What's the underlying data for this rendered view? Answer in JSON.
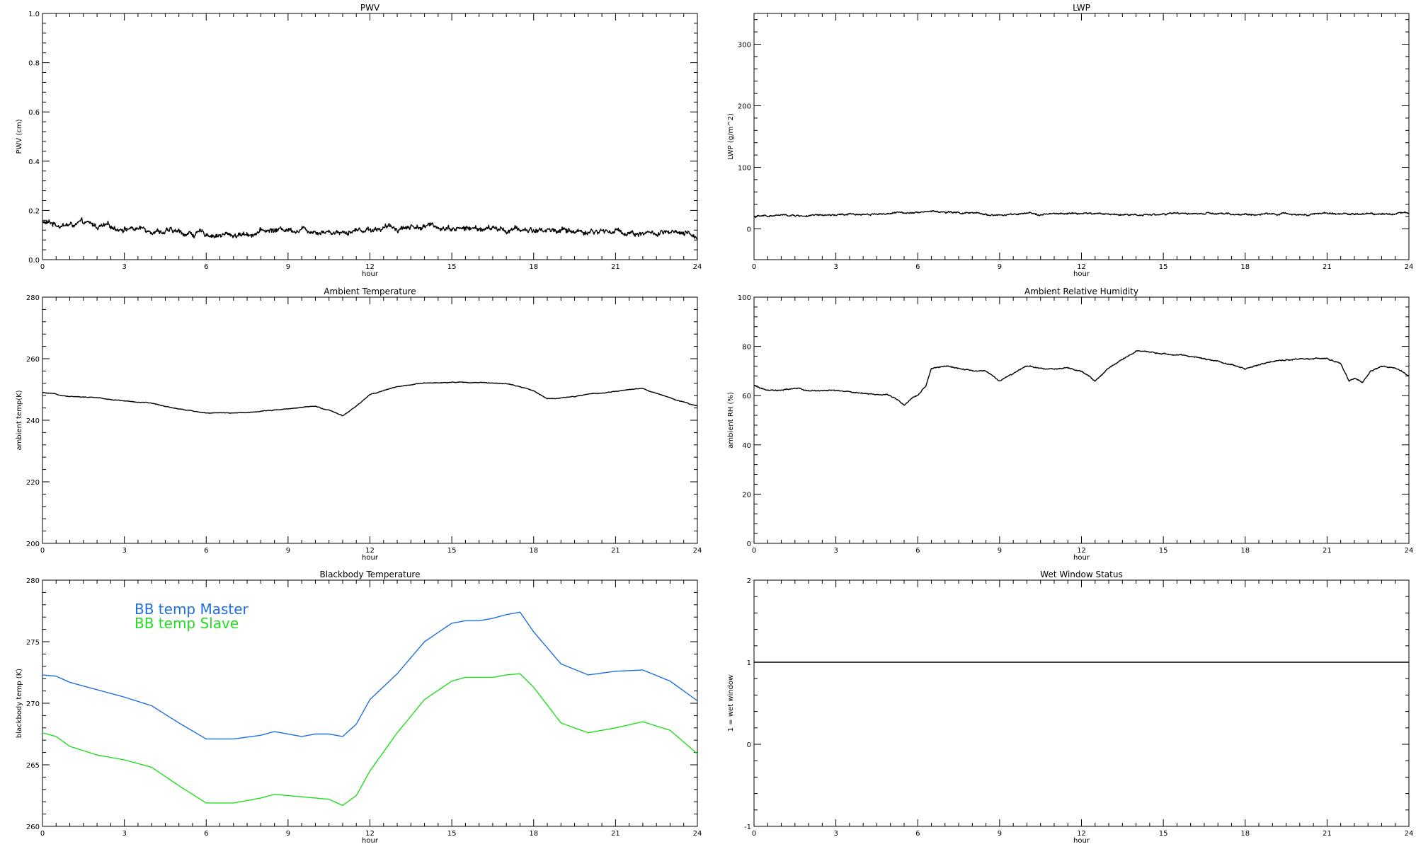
{
  "chart_data": [
    {
      "id": "pwv",
      "type": "line",
      "title": "PWV",
      "xlabel": "hour",
      "ylabel": "PWV (cm)",
      "xlim": [
        0,
        24
      ],
      "ylim": [
        0.0,
        1.0
      ],
      "xticks": [
        0,
        3,
        6,
        9,
        12,
        15,
        18,
        21,
        24
      ],
      "yticks": [
        0.0,
        0.2,
        0.4,
        0.6,
        0.8,
        1.0
      ],
      "ytick_labels": [
        "0.0",
        "0.2",
        "0.4",
        "0.6",
        "0.8",
        "1.0"
      ],
      "grid": false,
      "noise": 0.012,
      "series": [
        {
          "color": "#000000",
          "x": [
            0,
            0.5,
            1,
            1.5,
            2,
            2.5,
            3,
            3.5,
            4,
            4.5,
            5,
            5.5,
            6,
            6.5,
            7,
            7.5,
            8,
            8.5,
            9,
            9.5,
            10,
            10.5,
            11,
            11.5,
            12,
            12.5,
            13,
            13.5,
            14,
            14.5,
            15,
            15.5,
            16,
            16.5,
            17,
            17.5,
            18,
            18.5,
            19,
            19.5,
            20,
            20.5,
            21,
            21.5,
            22,
            22.5,
            23,
            23.5,
            24
          ],
          "y": [
            0.15,
            0.145,
            0.14,
            0.145,
            0.135,
            0.13,
            0.13,
            0.125,
            0.125,
            0.115,
            0.11,
            0.105,
            0.105,
            0.1,
            0.1,
            0.105,
            0.115,
            0.12,
            0.125,
            0.125,
            0.12,
            0.115,
            0.115,
            0.12,
            0.125,
            0.13,
            0.13,
            0.135,
            0.135,
            0.135,
            0.13,
            0.125,
            0.125,
            0.125,
            0.12,
            0.12,
            0.12,
            0.12,
            0.12,
            0.115,
            0.115,
            0.115,
            0.115,
            0.11,
            0.11,
            0.105,
            0.105,
            0.1,
            0.095
          ]
        }
      ]
    },
    {
      "id": "lwp",
      "type": "line",
      "title": "LWP",
      "xlabel": "hour",
      "ylabel": "LWP (g/m^2)",
      "xlim": [
        0,
        24
      ],
      "ylim": [
        -50,
        350
      ],
      "xticks": [
        0,
        3,
        6,
        9,
        12,
        15,
        18,
        21,
        24
      ],
      "yticks": [
        0,
        100,
        200,
        300
      ],
      "ytick_labels": [
        "0",
        "100",
        "200",
        "300"
      ],
      "grid": false,
      "noise": 1.5,
      "series": [
        {
          "color": "#000000",
          "x": [
            0,
            1,
            2,
            3,
            4,
            5,
            6,
            6.5,
            7,
            8,
            9,
            10,
            11,
            12,
            13,
            14,
            15,
            16,
            17,
            18,
            19,
            20,
            21,
            22,
            23,
            24
          ],
          "y": [
            20,
            22,
            21,
            22,
            24,
            25,
            28,
            29,
            27,
            25,
            22,
            24,
            24,
            25,
            24,
            23,
            24,
            25,
            24,
            23,
            24,
            24,
            25,
            24,
            25,
            26
          ]
        }
      ]
    },
    {
      "id": "ambient-temp",
      "type": "line",
      "title": "Ambient Temperature",
      "xlabel": "hour",
      "ylabel": "ambient temp(K)",
      "xlim": [
        0,
        24
      ],
      "ylim": [
        200,
        280
      ],
      "xticks": [
        0,
        3,
        6,
        9,
        12,
        15,
        18,
        21,
        24
      ],
      "yticks": [
        200,
        220,
        240,
        260,
        280
      ],
      "ytick_labels": [
        "200",
        "220",
        "240",
        "260",
        "280"
      ],
      "grid": false,
      "noise": 0.12,
      "series": [
        {
          "color": "#000000",
          "x": [
            0,
            1,
            2,
            3,
            4,
            5,
            6,
            7,
            8,
            9,
            10,
            10.5,
            11,
            11.5,
            12,
            13,
            14,
            15,
            16,
            17,
            17.5,
            18,
            18.5,
            19,
            20,
            21,
            21.5,
            22,
            23,
            24
          ],
          "y": [
            249,
            247.8,
            247.3,
            246.3,
            245.5,
            243.7,
            242.4,
            242.3,
            242.9,
            243.8,
            244.5,
            243.2,
            241.4,
            244.5,
            248.3,
            251,
            252,
            252.4,
            252.2,
            252,
            251,
            249.5,
            247,
            247.2,
            248.4,
            249.3,
            250,
            250.3,
            247.2,
            244.7
          ]
        }
      ]
    },
    {
      "id": "ambient-rh",
      "type": "line",
      "title": "Ambient Relative Humidity",
      "xlabel": "hour",
      "ylabel": "ambient RH (%)",
      "xlim": [
        0,
        24
      ],
      "ylim": [
        0,
        100
      ],
      "xticks": [
        0,
        3,
        6,
        9,
        12,
        15,
        18,
        21,
        24
      ],
      "yticks": [
        0,
        20,
        40,
        60,
        80,
        100
      ],
      "ytick_labels": [
        "0",
        "20",
        "40",
        "60",
        "80",
        "100"
      ],
      "grid": false,
      "noise": 0.25,
      "series": [
        {
          "color": "#000000",
          "x": [
            0,
            0.5,
            1,
            1.5,
            2,
            3,
            4,
            5,
            5.3,
            5.5,
            5.8,
            6,
            6.3,
            6.5,
            7,
            8,
            8.5,
            9,
            9.5,
            10,
            10.5,
            11,
            11.5,
            12,
            12.5,
            13,
            13.5,
            14,
            15,
            16,
            17,
            18,
            19,
            20,
            21,
            21.5,
            21.8,
            22,
            22.3,
            22.6,
            23,
            23.5,
            24
          ],
          "y": [
            64,
            62,
            62,
            63,
            62,
            62,
            61,
            60,
            58,
            56,
            59,
            60,
            64,
            71,
            72,
            70,
            70,
            66,
            69,
            72,
            71,
            71,
            71,
            70,
            66,
            71,
            75,
            78,
            77,
            76,
            74,
            71,
            74,
            75,
            75,
            73,
            66,
            67,
            65,
            70,
            72,
            71,
            68
          ]
        }
      ]
    },
    {
      "id": "bb-temp",
      "type": "line",
      "title": "Blackbody Temperature",
      "xlabel": "hour",
      "ylabel": "blackbody temp (K)",
      "xlim": [
        0,
        24
      ],
      "ylim": [
        260,
        280
      ],
      "xticks": [
        0,
        3,
        6,
        9,
        12,
        15,
        18,
        21,
        24
      ],
      "yticks": [
        260,
        265,
        270,
        275,
        280
      ],
      "ytick_labels": [
        "260",
        "265",
        "270",
        "275",
        "280"
      ],
      "grid": false,
      "noise": 0,
      "legend": "top-left",
      "series": [
        {
          "name": "BB temp Master",
          "color": "#1e6fe0",
          "x": [
            0,
            0.5,
            1,
            2,
            3,
            4,
            5,
            6,
            6.5,
            7,
            8,
            8.5,
            9,
            9.5,
            10,
            10.5,
            11,
            11.5,
            12,
            13,
            14,
            15,
            15.5,
            16,
            16.5,
            17,
            17.5,
            18,
            19,
            20,
            21,
            22,
            23,
            24
          ],
          "y": [
            272.3,
            272.2,
            271.7,
            271.1,
            270.5,
            269.8,
            268.4,
            267.1,
            267.1,
            267.1,
            267.4,
            267.7,
            267.5,
            267.3,
            267.5,
            267.5,
            267.3,
            268.3,
            270.3,
            272.4,
            275,
            276.5,
            276.7,
            276.7,
            276.9,
            277.2,
            277.4,
            275.8,
            273.2,
            272.3,
            272.6,
            272.7,
            271.8,
            270.2
          ]
        },
        {
          "name": "BB temp Slave",
          "color": "#22dd22",
          "x": [
            0,
            0.5,
            1,
            2,
            3,
            4,
            5,
            6,
            6.5,
            7,
            8,
            8.5,
            9,
            9.5,
            10,
            10.5,
            11,
            11.5,
            12,
            13,
            14,
            15,
            15.5,
            16,
            16.5,
            17,
            17.5,
            18,
            19,
            20,
            21,
            22,
            23,
            24
          ],
          "y": [
            267.6,
            267.3,
            266.5,
            265.8,
            265.4,
            264.8,
            263.3,
            261.9,
            261.9,
            261.9,
            262.3,
            262.6,
            262.5,
            262.4,
            262.3,
            262.2,
            261.7,
            262.5,
            264.5,
            267.6,
            270.3,
            271.8,
            272.1,
            272.1,
            272.1,
            272.3,
            272.4,
            271.3,
            268.4,
            267.6,
            268,
            268.5,
            267.8,
            265.9
          ]
        }
      ]
    },
    {
      "id": "wet-window",
      "type": "line",
      "title": "Wet Window Status",
      "xlabel": "hour",
      "ylabel": "1 = wet window",
      "xlim": [
        0,
        24
      ],
      "ylim": [
        -1,
        2
      ],
      "xticks": [
        0,
        3,
        6,
        9,
        12,
        15,
        18,
        21,
        24
      ],
      "yticks": [
        -1,
        0,
        1,
        2
      ],
      "ytick_labels": [
        "-1",
        "0",
        "1",
        "2"
      ],
      "grid": false,
      "noise": 0,
      "series": [
        {
          "color": "#000000",
          "x": [
            0,
            24
          ],
          "y": [
            1,
            1
          ]
        }
      ]
    }
  ]
}
